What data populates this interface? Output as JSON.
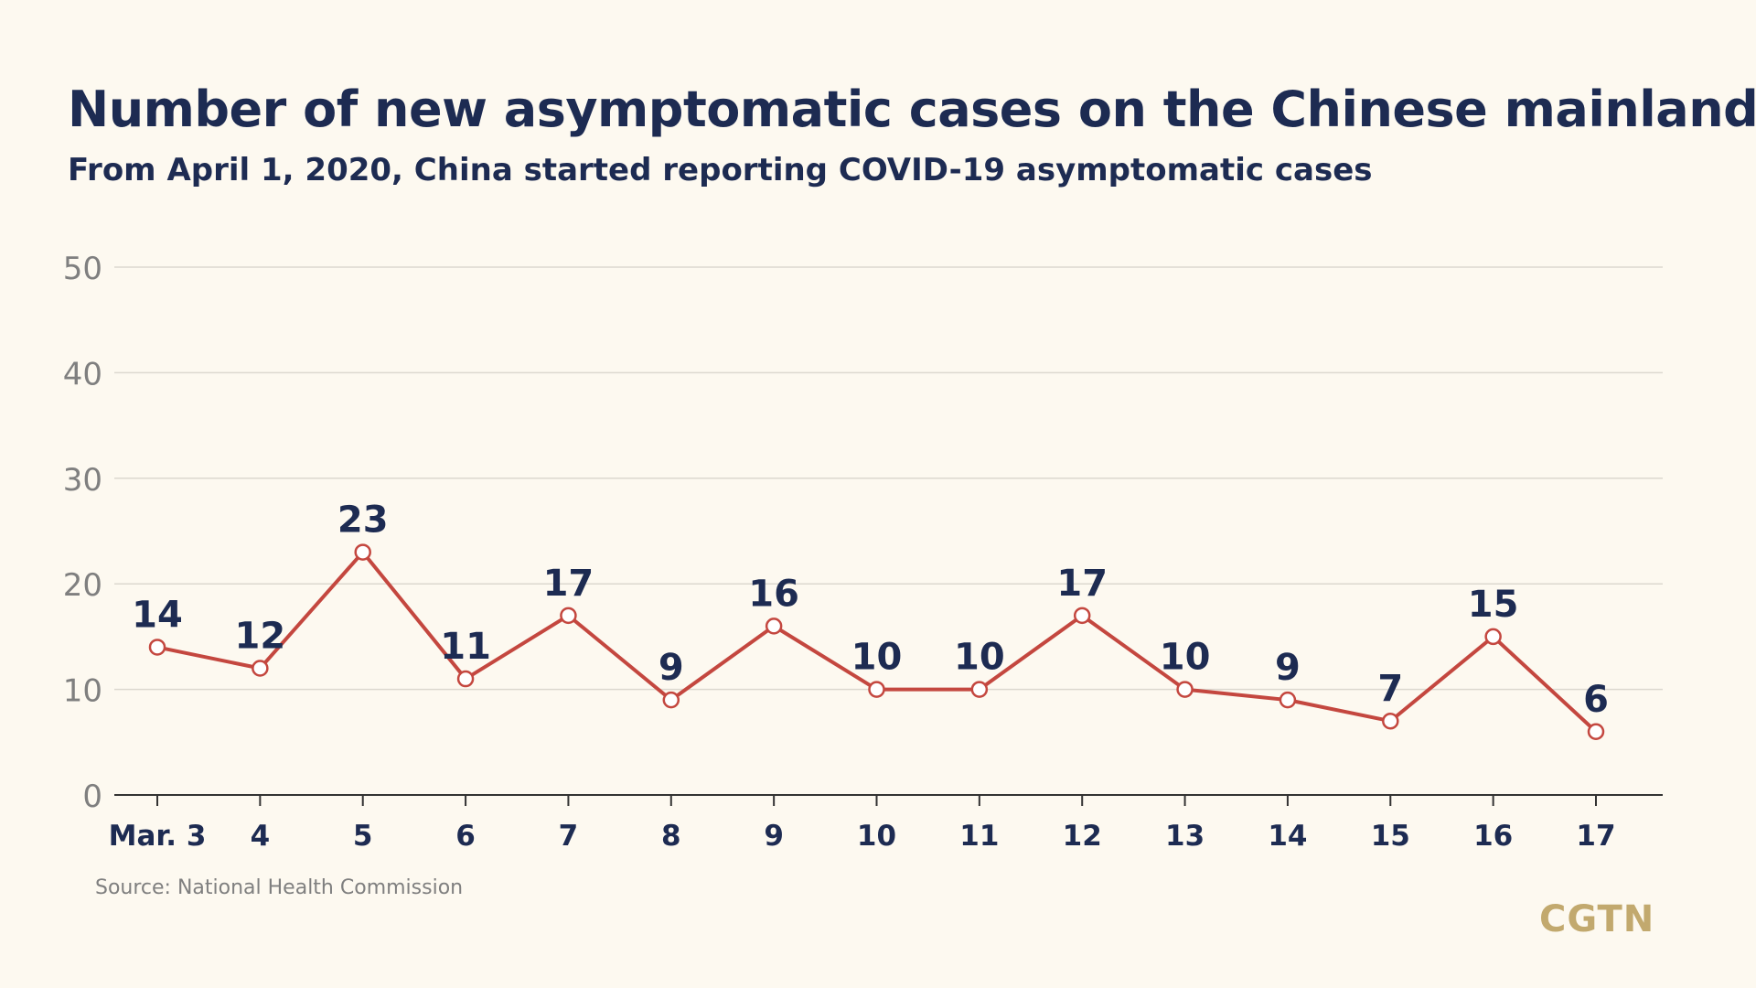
{
  "header": {
    "title": "Number of new asymptomatic cases on the Chinese mainland",
    "subtitle": "From April 1, 2020, China started reporting COVID-19 asymptomatic cases"
  },
  "footer": {
    "source": "Source: National Health Commission",
    "logo": "CGTN"
  },
  "colors": {
    "background": "#fdf9f0",
    "line": "#c4473f",
    "label": "#1d2b52",
    "grid": "#dcd8cf",
    "axis_tick": "#7f7f7f",
    "logo": "#c2a96e"
  },
  "chart_data": {
    "type": "line",
    "categories": [
      "Mar. 3",
      "4",
      "5",
      "6",
      "7",
      "8",
      "9",
      "10",
      "11",
      "12",
      "13",
      "14",
      "15",
      "16",
      "17"
    ],
    "values": [
      14,
      12,
      23,
      11,
      17,
      9,
      16,
      10,
      10,
      17,
      10,
      9,
      7,
      15,
      6
    ],
    "data_labels": [
      "14",
      "12",
      "23",
      "11",
      "17",
      "9",
      "16",
      "10",
      "10",
      "17",
      "10",
      "9",
      "7",
      "15",
      "6"
    ],
    "y_ticks": [
      "0",
      "10",
      "20",
      "30",
      "40",
      "50"
    ],
    "ylim": [
      0,
      50
    ],
    "grid": true,
    "xlabel": "",
    "ylabel": ""
  }
}
